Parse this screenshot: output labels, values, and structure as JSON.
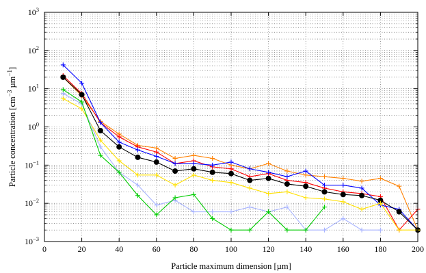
{
  "chart_data": {
    "type": "line",
    "title": "",
    "xlabel": "Particle maximum dimension [µm]",
    "ylabel": {
      "base": "Particle concentration [cm",
      "sup1": "−3",
      "mid": " µm",
      "sup2": "−1",
      "end": "]"
    },
    "xlim": [
      0,
      200
    ],
    "ylim": [
      0.001,
      1000
    ],
    "yscale": "log",
    "grid": true,
    "x_ticks": [
      0,
      20,
      40,
      60,
      80,
      100,
      120,
      140,
      160,
      180,
      200
    ],
    "y_ticks": [
      {
        "value": 0.001,
        "base": "10",
        "exp": "−3"
      },
      {
        "value": 0.01,
        "base": "10",
        "exp": "−2"
      },
      {
        "value": 0.1,
        "base": "10",
        "exp": "−1"
      },
      {
        "value": 1,
        "base": "10",
        "exp": "0"
      },
      {
        "value": 10,
        "base": "10",
        "exp": "1"
      },
      {
        "value": 100,
        "base": "10",
        "exp": "2"
      },
      {
        "value": 1000,
        "base": "10",
        "exp": "3"
      }
    ],
    "series": [
      {
        "color": "#ff8000",
        "marker": "plus",
        "x": [
          10,
          20,
          30,
          40,
          50,
          60,
          70,
          80,
          90,
          100,
          110,
          120,
          130,
          140,
          150,
          160,
          170,
          180,
          190,
          200
        ],
        "y": [
          20,
          6.5,
          1.4,
          0.65,
          0.33,
          0.28,
          0.15,
          0.18,
          0.15,
          0.1,
          0.08,
          0.11,
          0.07,
          0.055,
          0.05,
          0.045,
          0.038,
          0.045,
          0.028,
          0.002
        ]
      },
      {
        "color": "#ff0000",
        "marker": "plus",
        "x": [
          10,
          20,
          30,
          40,
          50,
          60,
          70,
          80,
          90,
          100,
          110,
          120,
          130,
          140,
          150,
          160,
          170,
          180,
          190,
          200
        ],
        "y": [
          22,
          7.5,
          1.3,
          0.55,
          0.3,
          0.22,
          0.11,
          0.13,
          0.09,
          0.08,
          0.05,
          0.06,
          0.04,
          0.035,
          0.025,
          0.02,
          0.018,
          0.015,
          0.002,
          0.007
        ]
      },
      {
        "color": "#0000ff",
        "marker": "plus",
        "x": [
          10,
          20,
          30,
          40,
          50,
          60,
          70,
          80,
          90,
          100,
          110,
          120,
          130,
          140,
          150,
          160,
          170,
          180,
          190,
          200
        ],
        "y": [
          42,
          14,
          1.3,
          0.4,
          0.25,
          0.17,
          0.11,
          0.11,
          0.1,
          0.12,
          0.08,
          0.065,
          0.05,
          0.07,
          0.03,
          0.03,
          0.025,
          0.009,
          0.007,
          0.002
        ]
      },
      {
        "color": "#000000",
        "marker": "dot",
        "x": [
          10,
          20,
          30,
          40,
          50,
          60,
          70,
          80,
          90,
          100,
          110,
          120,
          130,
          140,
          150,
          160,
          170,
          180,
          190,
          200
        ],
        "y": [
          20,
          7,
          0.8,
          0.3,
          0.16,
          0.12,
          0.07,
          0.08,
          0.065,
          0.06,
          0.04,
          0.045,
          0.032,
          0.028,
          0.02,
          0.017,
          0.016,
          0.012,
          0.006,
          0.002
        ]
      },
      {
        "color": "#ffe000",
        "marker": "plus",
        "x": [
          10,
          20,
          30,
          40,
          50,
          60,
          70,
          80,
          90,
          100,
          110,
          120,
          130,
          140,
          150,
          160,
          170,
          180,
          190,
          200
        ],
        "y": [
          5.5,
          3,
          0.45,
          0.13,
          0.055,
          0.055,
          0.03,
          0.055,
          0.04,
          0.035,
          0.025,
          0.018,
          0.02,
          0.014,
          0.013,
          0.011,
          0.007,
          0.01,
          0.002,
          0.002
        ]
      },
      {
        "color": "#a8b4ff",
        "marker": "plus",
        "x": [
          10,
          20,
          30,
          40,
          50,
          60,
          70,
          80,
          90,
          100,
          110,
          120,
          130,
          140,
          150,
          160,
          170,
          180
        ],
        "y": [
          7.5,
          4,
          0.3,
          0.065,
          0.03,
          0.009,
          0.012,
          0.006,
          0.006,
          0.006,
          0.008,
          0.006,
          0.008,
          0.002,
          0.002,
          0.004,
          0.002,
          0.002
        ]
      },
      {
        "color": "#00cc00",
        "marker": "plus",
        "x": [
          10,
          20,
          30,
          40,
          50,
          60,
          70,
          80,
          90,
          100,
          110,
          120,
          130,
          140,
          150
        ],
        "y": [
          9.5,
          4.5,
          0.18,
          0.065,
          0.016,
          0.005,
          0.014,
          0.017,
          0.004,
          0.002,
          0.002,
          0.006,
          0.002,
          0.002,
          0.008
        ]
      }
    ]
  }
}
